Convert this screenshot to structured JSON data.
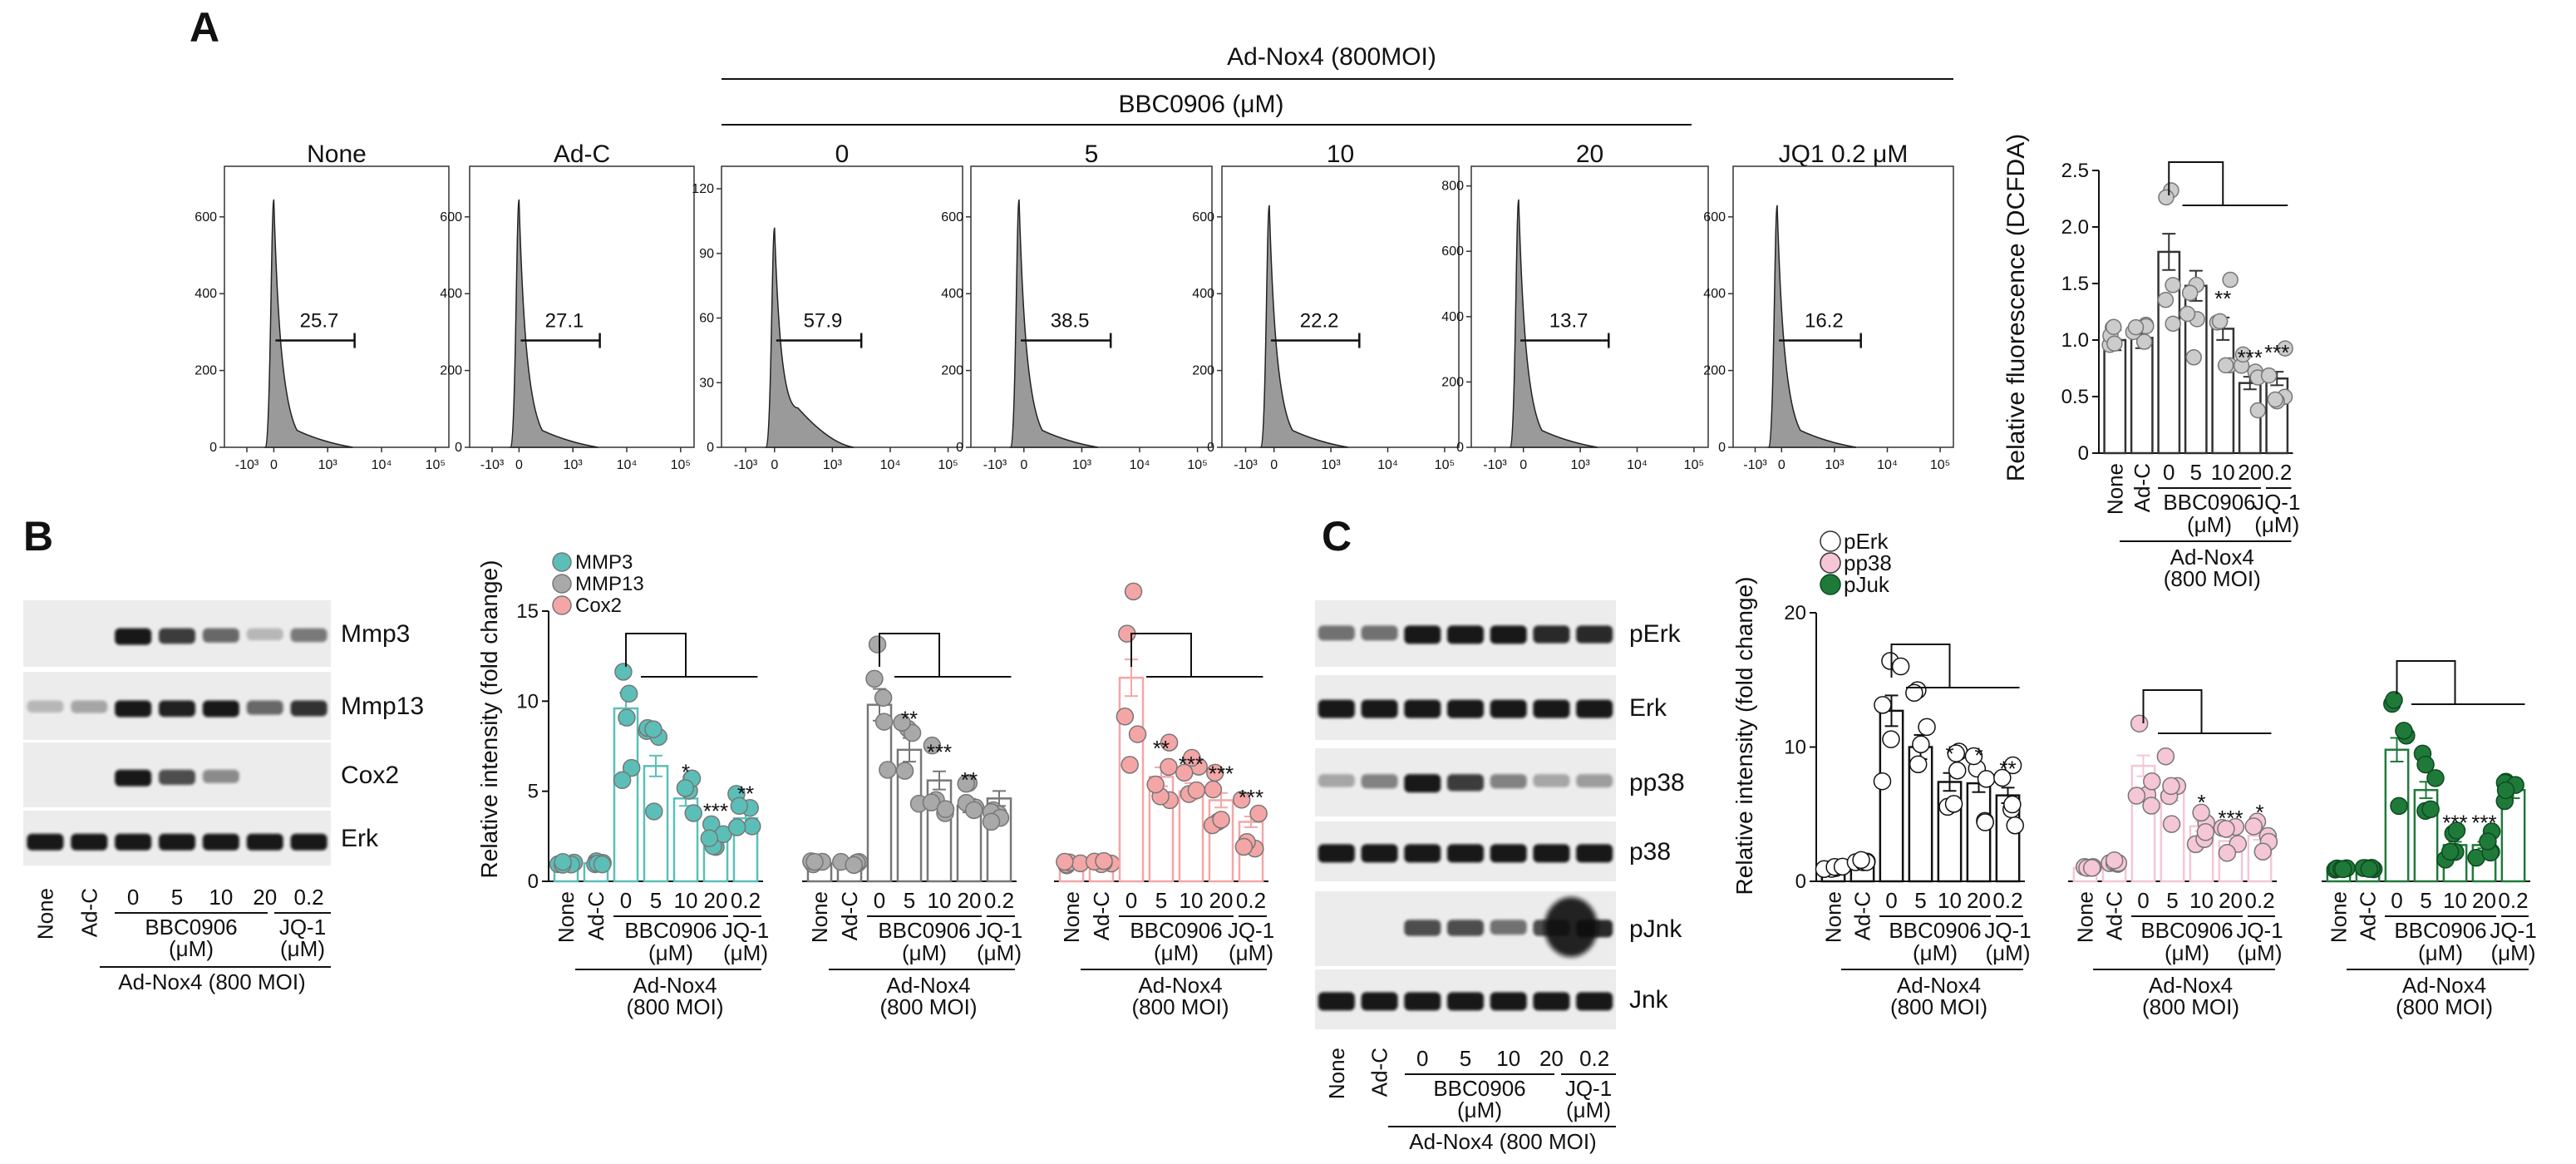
{
  "panels": {
    "a": "A",
    "b": "B",
    "c": "C"
  },
  "a": {
    "treatment": "Ad-Nox4 (800MOI)",
    "compound": "BBC0906  (μM)",
    "flow_titles": [
      "None",
      "Ad-C",
      "0",
      "5",
      "10",
      "20",
      "JQ1 0.2 μM"
    ],
    "flow_gates": [
      "25.7",
      "27.1",
      "57.9",
      "38.5",
      "22.2",
      "13.7",
      "16.2"
    ],
    "flow_peaks": [
      0.88,
      0.88,
      0.78,
      0.88,
      0.86,
      0.88,
      0.86
    ],
    "flow_x_ticks": [
      "-10³",
      "0",
      "10³",
      "10⁴",
      "10⁵"
    ],
    "flow_y_ticks": [
      [
        "0",
        "200",
        "400",
        "600"
      ],
      [
        "0",
        "200",
        "400",
        "600"
      ],
      [
        "0",
        "30",
        "60",
        "90",
        "120"
      ],
      [
        "0",
        "200",
        "400",
        "600"
      ],
      [
        "0",
        "200",
        "400",
        "600"
      ],
      [
        "0",
        "200",
        "400",
        "600",
        "800"
      ],
      [
        "0",
        "200",
        "400",
        "600"
      ]
    ]
  },
  "chart_data": [
    {
      "type": "bar",
      "id": "dcfda",
      "title": "",
      "ylabel": "Relative fluorescence (DCFDA)",
      "ylim": [
        0,
        2.5
      ],
      "yticks": [
        "0",
        "0.5",
        "1.0",
        "1.5",
        "2.0",
        "2.5"
      ],
      "categories": [
        "None",
        "Ad-C",
        "0",
        "5",
        "10",
        "20",
        "0.2"
      ],
      "series": [
        {
          "name": "DCFDA",
          "values": [
            1.0,
            1.02,
            1.78,
            1.48,
            1.1,
            0.62,
            0.66
          ],
          "color": "#cccccc"
        }
      ],
      "stars": [
        "",
        "",
        "",
        "",
        "**",
        "***",
        "***"
      ],
      "group_labels": [
        "BBC0906 (μM)",
        "JQ-1 (μM)",
        "Ad-Nox4 (800 MOI)"
      ]
    },
    {
      "type": "bar",
      "id": "b-bars",
      "ylabel": "Relative intensity (fold change)",
      "ylim": [
        0,
        15
      ],
      "yticks": [
        "0",
        "5",
        "10",
        "15"
      ],
      "legend": [
        "MMP3",
        "MMP13",
        "Cox2"
      ],
      "categories": [
        "None",
        "Ad-C",
        "0",
        "5",
        "10",
        "20",
        "0.2"
      ],
      "series": [
        {
          "name": "MMP3",
          "values": [
            1.0,
            1.0,
            9.6,
            6.4,
            4.6,
            2.6,
            3.5
          ],
          "color": "#5bbfb8",
          "stars": [
            "",
            "",
            "",
            "",
            "*",
            "***",
            "**"
          ]
        },
        {
          "name": "MMP13",
          "values": [
            1.0,
            1.0,
            9.8,
            7.3,
            5.6,
            4.2,
            4.6
          ],
          "color": "#a9a9a9",
          "stars": [
            "",
            "",
            "",
            "**",
            "***",
            "**",
            ""
          ]
        },
        {
          "name": "Cox2",
          "values": [
            1.0,
            1.0,
            11.3,
            5.8,
            5.0,
            4.5,
            3.3
          ],
          "color": "#f4a6a6",
          "stars": [
            "",
            "",
            "",
            "**",
            "***",
            "***",
            "***"
          ]
        }
      ],
      "group_labels": [
        "BBC0906",
        "(μM)",
        "JQ-1",
        "(μM)",
        "Ad-Nox4",
        "(800 MOI)"
      ]
    },
    {
      "type": "bar",
      "id": "c-bars",
      "ylabel": "Relative intensity (fold change)",
      "ylim": [
        0,
        20
      ],
      "yticks": [
        "0",
        "10",
        "20"
      ],
      "legend": [
        "pErk",
        "pp38",
        "pJuk"
      ],
      "categories": [
        "None",
        "Ad-C",
        "0",
        "5",
        "10",
        "20",
        "0.2"
      ],
      "series": [
        {
          "name": "pErk",
          "values": [
            1.0,
            1.5,
            12.7,
            10.0,
            7.4,
            7.3,
            6.4
          ],
          "color": "#ffffff",
          "stars": [
            "",
            "",
            "",
            "",
            "*",
            "*",
            "**"
          ]
        },
        {
          "name": "pp38",
          "values": [
            1.0,
            1.4,
            8.6,
            6.6,
            4.1,
            3.0,
            3.4
          ],
          "color": "#f5c6d6",
          "stars": [
            "",
            "",
            "",
            "",
            "*",
            "***",
            "*"
          ]
        },
        {
          "name": "pJuk",
          "values": [
            1.0,
            1.0,
            9.8,
            6.8,
            2.7,
            2.7,
            6.8
          ],
          "color": "#1f7a3a",
          "stars": [
            "",
            "",
            "",
            "",
            "***",
            "***",
            ""
          ]
        }
      ]
    }
  ],
  "b": {
    "blot_labels": [
      "Mmp3",
      "Mmp13",
      "Cox2",
      "Erk"
    ],
    "lanes": [
      "None",
      "Ad-C",
      "0",
      "5",
      "10",
      "20",
      "0.2"
    ],
    "compound": "BBC0906",
    "compound_unit": "(μM)",
    "jq": "JQ-1",
    "jq_unit": "(μM)",
    "treatment": "Ad-Nox4 (800 MOI)"
  },
  "c": {
    "blot_labels": [
      "pErk",
      "Erk",
      "pp38",
      "p38",
      "pJnk",
      "Jnk"
    ],
    "lanes": [
      "None",
      "Ad-C",
      "0",
      "5",
      "10",
      "20",
      "0.2"
    ],
    "compound": "BBC0906",
    "compound_unit": "(μM)",
    "jq": "JQ-1",
    "jq_unit": "(μM)",
    "treatment": "Ad-Nox4 (800 MOI)"
  },
  "bars_labels": {
    "bbc": "BBC0906",
    "unit": "(μM)",
    "jq": "JQ-1",
    "nox": "Ad-Nox4",
    "moi": "(800 MOI)"
  }
}
